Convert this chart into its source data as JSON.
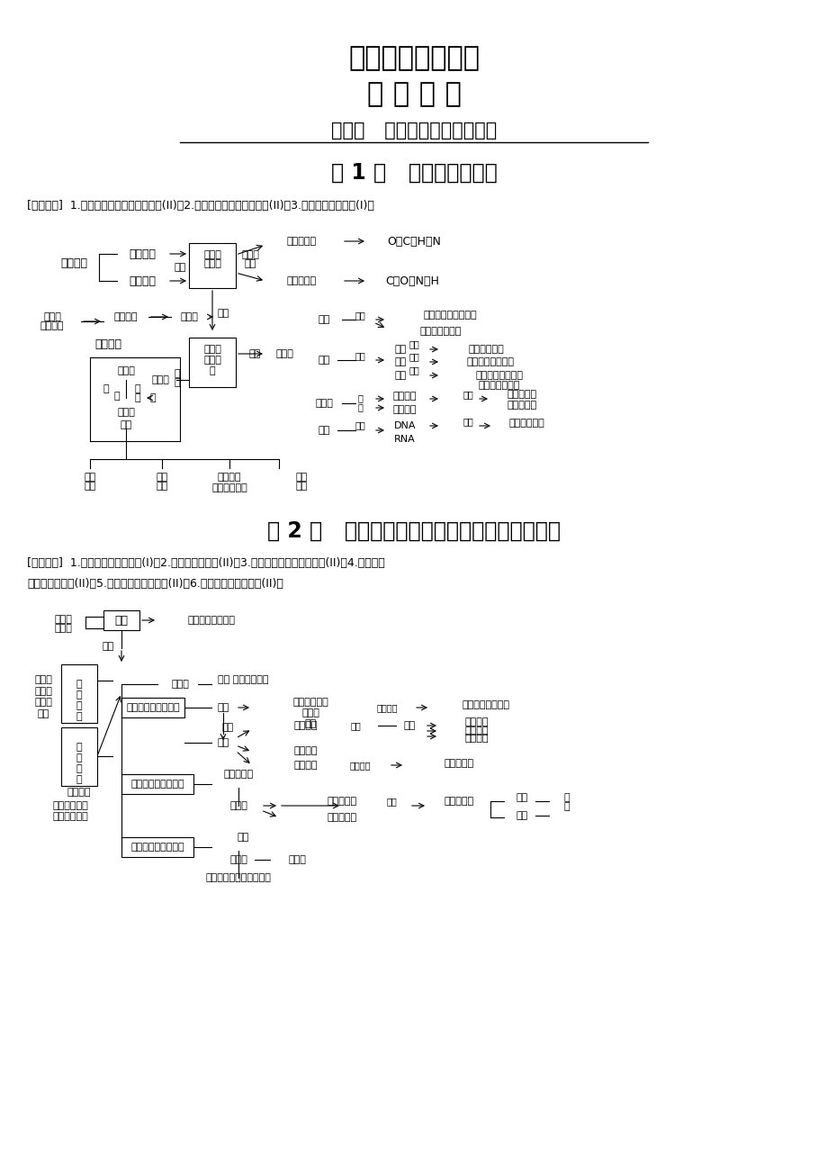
{
  "title1": "高中生物必修教材",
  "title2": "知 识 网 络",
  "subtitle": "专题一   细胞的分子组成和结构",
  "section1_title": "第 1 讲   细胞的分子组成",
  "section1_req": "[考纲要求]  1.蛋白质、核酸的结构和功能(II)。2.糖类、脂质的种类和作用(II)。3.水和无机盐的作用(I)。",
  "section2_title": "第 2 讲   细胞的基本结构与物质出入细胞的方式",
  "section2_req1": "[考纲要求]  1.细胞学说的建立过程(I)。2.多种多样的细胞(II)。3.细胞膜系统的结构和功能(II)。4.主要细胞",
  "section2_req2": "器的结构和功能(II)。5.细胞核的结构和功能(II)。6.物质出入细胞的方式(II)。",
  "bg_color": "#ffffff",
  "text_color": "#000000"
}
